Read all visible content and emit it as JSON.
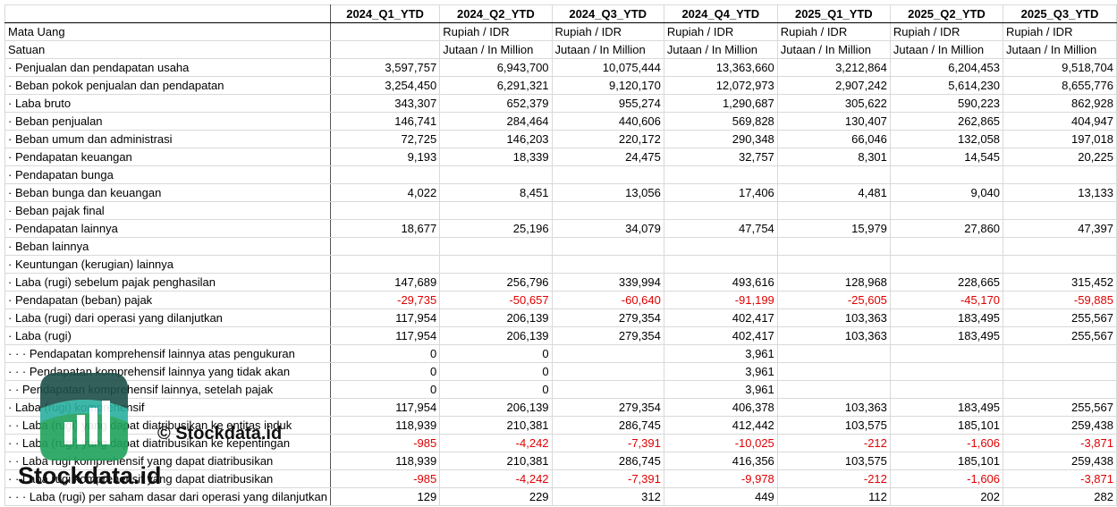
{
  "table": {
    "columns": [
      "2024_Q1_YTD",
      "2024_Q2_YTD",
      "2024_Q3_YTD",
      "2024_Q4_YTD",
      "2025_Q1_YTD",
      "2025_Q2_YTD",
      "2025_Q3_YTD"
    ],
    "rows": [
      {
        "label": "Mata Uang",
        "cells": [
          null,
          "Rupiah / IDR",
          "Rupiah / IDR",
          "Rupiah / IDR",
          "Rupiah / IDR",
          "Rupiah / IDR",
          "Rupiah / IDR"
        ]
      },
      {
        "label": "Satuan",
        "cells": [
          null,
          "Jutaan / In Million",
          "Jutaan / In Million",
          "Jutaan / In Million",
          "Jutaan / In Million",
          "Jutaan / In Million",
          "Jutaan / In Million"
        ]
      },
      {
        "label": "· Penjualan dan pendapatan usaha",
        "cells": [
          "3,597,757",
          "6,943,700",
          "10,075,444",
          "13,363,660",
          "3,212,864",
          "6,204,453",
          "9,518,704"
        ]
      },
      {
        "label": "· Beban pokok penjualan dan pendapatan",
        "cells": [
          "3,254,450",
          "6,291,321",
          "9,120,170",
          "12,072,973",
          "2,907,242",
          "5,614,230",
          "8,655,776"
        ]
      },
      {
        "label": "· Laba bruto",
        "cells": [
          "343,307",
          "652,379",
          "955,274",
          "1,290,687",
          "305,622",
          "590,223",
          "862,928"
        ]
      },
      {
        "label": "· Beban penjualan",
        "cells": [
          "146,741",
          "284,464",
          "440,606",
          "569,828",
          "130,407",
          "262,865",
          "404,947"
        ]
      },
      {
        "label": "· Beban umum dan administrasi",
        "cells": [
          "72,725",
          "146,203",
          "220,172",
          "290,348",
          "66,046",
          "132,058",
          "197,018"
        ]
      },
      {
        "label": "· Pendapatan keuangan",
        "cells": [
          "9,193",
          "18,339",
          "24,475",
          "32,757",
          "8,301",
          "14,545",
          "20,225"
        ]
      },
      {
        "label": "· Pendapatan bunga",
        "cells": [
          null,
          null,
          null,
          null,
          null,
          null,
          null
        ]
      },
      {
        "label": "· Beban bunga dan keuangan",
        "cells": [
          "4,022",
          "8,451",
          "13,056",
          "17,406",
          "4,481",
          "9,040",
          "13,133"
        ]
      },
      {
        "label": "· Beban pajak final",
        "cells": [
          null,
          null,
          null,
          null,
          null,
          null,
          null
        ]
      },
      {
        "label": "· Pendapatan lainnya",
        "cells": [
          "18,677",
          "25,196",
          "34,079",
          "47,754",
          "15,979",
          "27,860",
          "47,397"
        ]
      },
      {
        "label": "· Beban lainnya",
        "cells": [
          null,
          null,
          null,
          null,
          null,
          null,
          null
        ]
      },
      {
        "label": "· Keuntungan (kerugian) lainnya",
        "cells": [
          null,
          null,
          null,
          null,
          null,
          null,
          null
        ]
      },
      {
        "label": "· Laba (rugi) sebelum pajak penghasilan",
        "cells": [
          "147,689",
          "256,796",
          "339,994",
          "493,616",
          "128,968",
          "228,665",
          "315,452"
        ]
      },
      {
        "label": "· Pendapatan (beban) pajak",
        "cells": [
          "-29,735",
          "-50,657",
          "-60,640",
          "-91,199",
          "-25,605",
          "-45,170",
          "-59,885"
        ]
      },
      {
        "label": "· Laba (rugi) dari operasi yang dilanjutkan",
        "cells": [
          "117,954",
          "206,139",
          "279,354",
          "402,417",
          "103,363",
          "183,495",
          "255,567"
        ]
      },
      {
        "label": "· Laba (rugi)",
        "cells": [
          "117,954",
          "206,139",
          "279,354",
          "402,417",
          "103,363",
          "183,495",
          "255,567"
        ]
      },
      {
        "label": "· · · Pendapatan komprehensif lainnya atas pengukuran",
        "cells": [
          "0",
          "0",
          null,
          "3,961",
          null,
          null,
          null
        ]
      },
      {
        "label": "· · · Pendapatan komprehensif lainnya yang tidak akan",
        "cells": [
          "0",
          "0",
          null,
          "3,961",
          null,
          null,
          null
        ]
      },
      {
        "label": "· · Pendapatan komprehensif lainnya, setelah pajak",
        "cells": [
          "0",
          "0",
          null,
          "3,961",
          null,
          null,
          null
        ]
      },
      {
        "label": "· Laba (rugi) komprehensif",
        "cells": [
          "117,954",
          "206,139",
          "279,354",
          "406,378",
          "103,363",
          "183,495",
          "255,567"
        ]
      },
      {
        "label": "· · Laba (rugi) yang dapat diatribusikan ke entitas induk",
        "cells": [
          "118,939",
          "210,381",
          "286,745",
          "412,442",
          "103,575",
          "185,101",
          "259,438"
        ]
      },
      {
        "label": "· · Laba (rugi) yang dapat diatribusikan ke kepentingan",
        "cells": [
          "-985",
          "-4,242",
          "-7,391",
          "-10,025",
          "-212",
          "-1,606",
          "-3,871"
        ]
      },
      {
        "label": "· · Laba rugi komprehensif yang dapat diatribusikan",
        "cells": [
          "118,939",
          "210,381",
          "286,745",
          "416,356",
          "103,575",
          "185,101",
          "259,438"
        ]
      },
      {
        "label": "· · Laba rugi komprehensif yang dapat diatribusikan",
        "cells": [
          "-985",
          "-4,242",
          "-7,391",
          "-9,978",
          "-212",
          "-1,606",
          "-3,871"
        ]
      },
      {
        "label": "· · · Laba (rugi) per saham dasar dari operasi yang dilanjutkan",
        "cells": [
          "129",
          "229",
          "312",
          "449",
          "112",
          "202",
          "282"
        ]
      }
    ]
  },
  "watermark": {
    "caption": "© Stockdata.id",
    "brand": "Stockdata.id"
  }
}
